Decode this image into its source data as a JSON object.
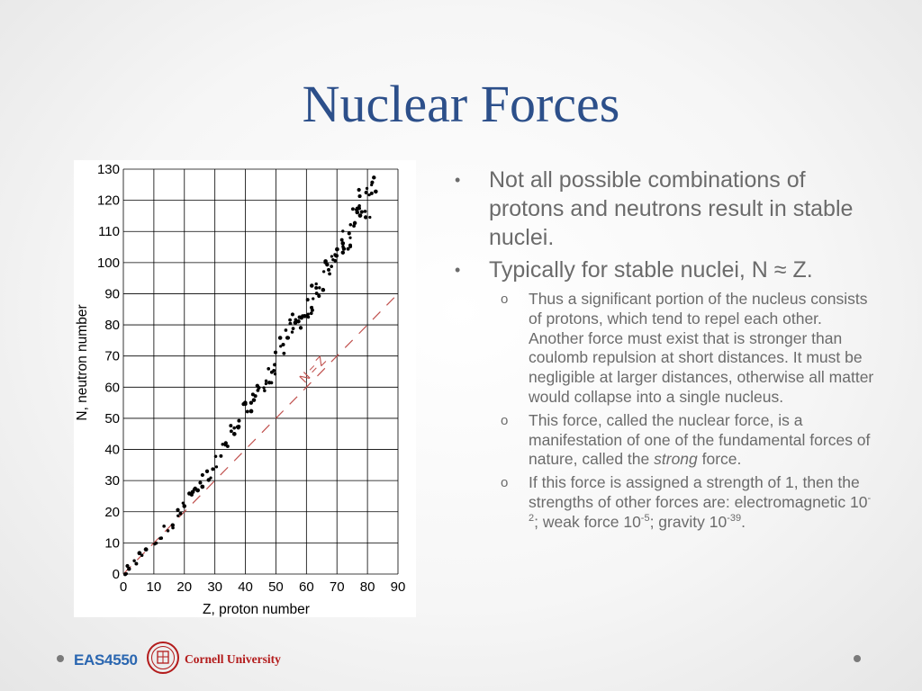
{
  "slide": {
    "title": "Nuclear Forces"
  },
  "bullets": {
    "b1": "Not all possible combinations of protons and neutrons result in stable nuclei.",
    "b2": "Typically for stable nuclei, N ≈ Z.",
    "s1": "Thus a significant portion of the nucleus consists of protons, which tend to repel each other. Another force must exist that is stronger than coulomb repulsion at short distances. It must be negligible at larger distances, otherwise all matter would collapse into a single nucleus.",
    "s2_a": "This force, called the nuclear force, is a manifestation of one of the fundamental forces of nature, called the ",
    "s2_em": "strong",
    "s2_b": " force.",
    "s3_a": "If this force is assigned a strength of 1, then the strengths of other forces are: electromagnetic 10",
    "s3_sup1": "-2",
    "s3_b": "; weak force 10",
    "s3_sup2": "-5",
    "s3_c": "; gravity 10",
    "s3_sup3": "-39",
    "s3_d": ".",
    "marker1": "•",
    "marker2": "o"
  },
  "footer": {
    "course_code": "EAS4550",
    "university": "Cornell University",
    "seal_icon": "cornell-seal-icon",
    "seal_color": "#b31b1b"
  },
  "chart_data": {
    "type": "scatter",
    "title": "",
    "xlabel": "Z, proton number",
    "ylabel": "N, neutron number",
    "xlim": [
      0,
      90
    ],
    "ylim": [
      0,
      130
    ],
    "x_ticks": [
      0,
      10,
      20,
      30,
      40,
      50,
      60,
      70,
      80,
      90
    ],
    "y_ticks": [
      0,
      10,
      20,
      30,
      40,
      50,
      60,
      70,
      80,
      90,
      100,
      110,
      120,
      130
    ],
    "grid": true,
    "reference_line": {
      "label": "N = Z",
      "from": [
        0,
        0
      ],
      "to": [
        90,
        90
      ],
      "color": "#c0504d",
      "style": "dashed"
    },
    "stability_band": {
      "description_points": [
        [
          1,
          0
        ],
        [
          2,
          2
        ],
        [
          4,
          4
        ],
        [
          6,
          6
        ],
        [
          8,
          8
        ],
        [
          10,
          10
        ],
        [
          12,
          12
        ],
        [
          14,
          14
        ],
        [
          16,
          16
        ],
        [
          18,
          20
        ],
        [
          20,
          22
        ],
        [
          22,
          25
        ],
        [
          24,
          28
        ],
        [
          26,
          30
        ],
        [
          28,
          32
        ],
        [
          30,
          36
        ],
        [
          32,
          40
        ],
        [
          34,
          43
        ],
        [
          36,
          46
        ],
        [
          38,
          50
        ],
        [
          40,
          52
        ],
        [
          42,
          55
        ],
        [
          44,
          58
        ],
        [
          46,
          61
        ],
        [
          48,
          64
        ],
        [
          50,
          68
        ],
        [
          52,
          74
        ],
        [
          54,
          78
        ],
        [
          56,
          80
        ],
        [
          58,
          82
        ],
        [
          60,
          84
        ],
        [
          62,
          88
        ],
        [
          64,
          92
        ],
        [
          66,
          96
        ],
        [
          68,
          100
        ],
        [
          70,
          104
        ],
        [
          72,
          106
        ],
        [
          74,
          110
        ],
        [
          76,
          114
        ],
        [
          78,
          118
        ],
        [
          80,
          120
        ],
        [
          82,
          125
        ]
      ]
    }
  }
}
